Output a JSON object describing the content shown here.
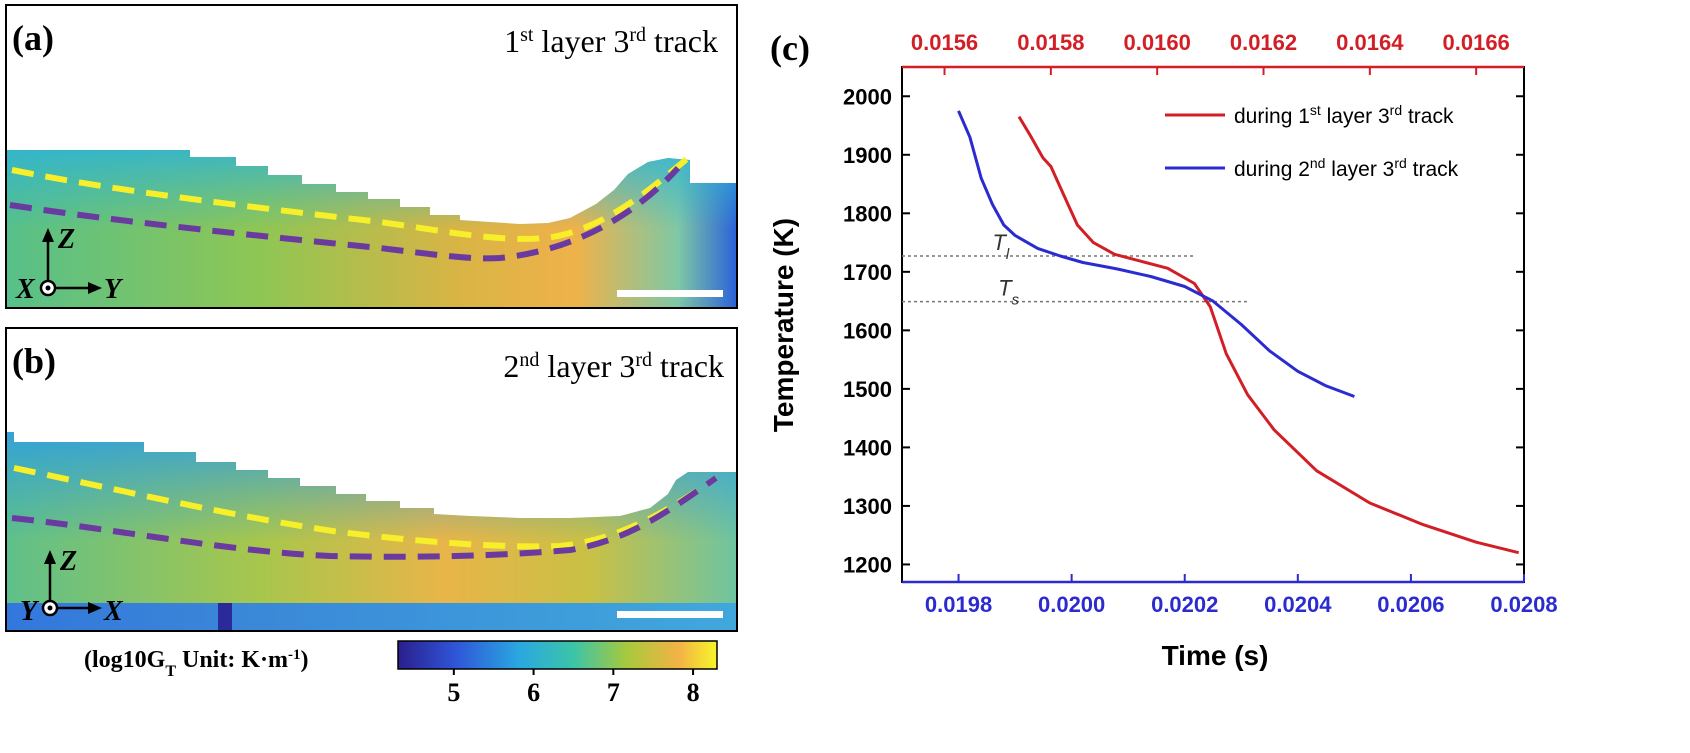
{
  "panel_a": {
    "label": "(a)",
    "title_ordinal_num": "1",
    "title_ordinal_sup": "st",
    "title_mid": " layer 3",
    "title_mid_sup": "rd",
    "title_end": " track",
    "axis_z": "Z",
    "axis_x": "X",
    "axis_y": "Y"
  },
  "panel_b": {
    "label": "(b)",
    "title_ordinal_num": "2",
    "title_ordinal_sup": "nd",
    "title_mid": " layer 3",
    "title_mid_sup": "rd",
    "title_end": " track",
    "axis_z": "Z",
    "axis_y": "Y",
    "axis_x": "X"
  },
  "colorbar": {
    "label": "(log10G",
    "label_sub": "T",
    "label_rest": " Unit: K·m",
    "label_exp": "-1",
    "label_close": ")",
    "ticks": [
      "5",
      "6",
      "7",
      "8"
    ],
    "tick_values": [
      5,
      6,
      7,
      8
    ],
    "range": [
      4.3,
      8.3
    ]
  },
  "colors": {
    "red": "#d21f26",
    "blue": "#2b2bd0",
    "yellow_dash": "#f7ef2a",
    "purple_dash": "#6a3aa0"
  },
  "chart_data": {
    "type": "line",
    "label": "(c)",
    "ylabel": "Temperature (K)",
    "xlabel": "Time (s)",
    "ylim": [
      1170,
      2050
    ],
    "y_ticks": [
      1200,
      1300,
      1400,
      1500,
      1600,
      1700,
      1800,
      1900,
      2000
    ],
    "x_bottom_lim": [
      0.0197,
      0.0208
    ],
    "x_bottom_ticks": [
      "0.0198",
      "0.0200",
      "0.0202",
      "0.0204",
      "0.0206",
      "0.0208"
    ],
    "x_bottom_tick_values": [
      0.0198,
      0.02,
      0.0202,
      0.0204,
      0.0206,
      0.0208
    ],
    "x_top_lim": [
      0.01552,
      0.01669
    ],
    "x_top_ticks": [
      "0.0156",
      "0.0158",
      "0.0160",
      "0.0162",
      "0.0164",
      "0.0166"
    ],
    "x_top_tick_values": [
      0.0156,
      0.0158,
      0.016,
      0.0162,
      0.0164,
      0.0166
    ],
    "annotations": [
      {
        "text": "T",
        "sub": "l",
        "value": 1727
      },
      {
        "text": "T",
        "sub": "s",
        "value": 1649
      }
    ],
    "legend_position": "top-right",
    "series": [
      {
        "name": "during 1st layer 3rd track",
        "name_parts": [
          "during 1",
          "st",
          " layer 3",
          "rd",
          " track"
        ],
        "axis": "top",
        "color": "#d21f26",
        "x": [
          0.01574,
          0.01576,
          0.015785,
          0.0158,
          0.015825,
          0.01585,
          0.01588,
          0.01592,
          0.01597,
          0.01602,
          0.01607,
          0.0161,
          0.01613,
          0.01617,
          0.01622,
          0.0163,
          0.0164,
          0.0165,
          0.0166,
          0.01668
        ],
        "y": [
          1965,
          1935,
          1895,
          1880,
          1830,
          1780,
          1750,
          1730,
          1718,
          1706,
          1680,
          1640,
          1560,
          1490,
          1430,
          1360,
          1305,
          1268,
          1238,
          1220
        ]
      },
      {
        "name": "during 2nd layer 3rd track",
        "name_parts": [
          "during 2",
          "nd",
          " layer 3",
          "rd",
          " track"
        ],
        "axis": "bottom",
        "color": "#2b2bd0",
        "x": [
          0.0198,
          0.01982,
          0.01984,
          0.01986,
          0.01988,
          0.0199,
          0.01994,
          0.01998,
          0.02002,
          0.02008,
          0.02014,
          0.0202,
          0.02025,
          0.0203,
          0.02035,
          0.0204,
          0.02045,
          0.0205
        ],
        "y": [
          1975,
          1930,
          1860,
          1815,
          1780,
          1762,
          1740,
          1727,
          1716,
          1705,
          1692,
          1675,
          1650,
          1610,
          1565,
          1530,
          1505,
          1487
        ]
      }
    ]
  }
}
